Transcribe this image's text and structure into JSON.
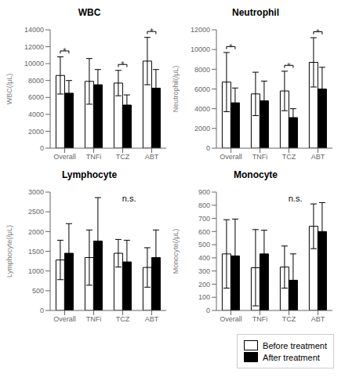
{
  "chart_data": [
    {
      "type": "bar",
      "title": "WBC",
      "y_label": "WBC(/μL)",
      "categories": [
        "Overall",
        "TNFi",
        "TCZ",
        "ABT"
      ],
      "series": [
        {
          "name": "Before treatment",
          "color": "#ffffff",
          "values": [
            8600,
            7900,
            7700,
            10300
          ],
          "errors": [
            2200,
            2700,
            1500,
            2800
          ]
        },
        {
          "name": "After treatment",
          "color": "#000000",
          "values": [
            6500,
            7500,
            5100,
            7100
          ],
          "errors": [
            1500,
            1800,
            1200,
            2200
          ]
        }
      ],
      "ylim": [
        0,
        14000
      ],
      "yticks": [
        0,
        2000,
        4000,
        6000,
        8000,
        10000,
        12000,
        14000
      ],
      "annotations": [
        {
          "category": "Overall",
          "text": "*"
        },
        {
          "category": "TCZ",
          "text": "*"
        },
        {
          "category": "ABT",
          "text": "*"
        }
      ]
    },
    {
      "type": "bar",
      "title": "Neutrophil",
      "y_label": "Neutrophil(/μL)",
      "categories": [
        "Overall",
        "TNFi",
        "TCZ",
        "ABT"
      ],
      "series": [
        {
          "name": "Before treatment",
          "color": "#ffffff",
          "values": [
            6700,
            5500,
            5800,
            8700
          ],
          "errors": [
            3000,
            2200,
            2000,
            2500
          ]
        },
        {
          "name": "After treatment",
          "color": "#000000",
          "values": [
            4600,
            4800,
            3100,
            6000
          ],
          "errors": [
            1500,
            2000,
            900,
            2200
          ]
        }
      ],
      "ylim": [
        0,
        12000
      ],
      "yticks": [
        0,
        2000,
        4000,
        6000,
        8000,
        10000,
        12000
      ],
      "annotations": [
        {
          "category": "Overall",
          "text": "*"
        },
        {
          "category": "TCZ",
          "text": "*"
        },
        {
          "category": "ABT",
          "text": "*"
        }
      ]
    },
    {
      "type": "bar",
      "title": "Lymphocyte",
      "y_label": "Lymphocyte(/μL)",
      "categories": [
        "Overall",
        "TNFi",
        "TCZ",
        "ABT"
      ],
      "series": [
        {
          "name": "Before treatment",
          "color": "#ffffff",
          "values": [
            1280,
            1340,
            1450,
            1090
          ],
          "errors": [
            500,
            700,
            350,
            500
          ]
        },
        {
          "name": "After treatment",
          "color": "#000000",
          "values": [
            1450,
            1760,
            1230,
            1340
          ],
          "errors": [
            750,
            1100,
            550,
            700
          ]
        }
      ],
      "ylim": [
        0,
        3000
      ],
      "yticks": [
        0,
        500,
        1000,
        1500,
        2000,
        2500,
        3000
      ],
      "annotations": [
        {
          "text": "n.s."
        }
      ]
    },
    {
      "type": "bar",
      "title": "Monocyte",
      "y_label": "Monocyte(/μL)",
      "categories": [
        "Overall",
        "TNFi",
        "TCZ",
        "ABT"
      ],
      "series": [
        {
          "name": "Before treatment",
          "color": "#ffffff",
          "values": [
            430,
            325,
            330,
            640
          ],
          "errors": [
            260,
            290,
            160,
            170
          ]
        },
        {
          "name": "After treatment",
          "color": "#000000",
          "values": [
            415,
            430,
            230,
            600
          ],
          "errors": [
            280,
            180,
            200,
            220
          ]
        }
      ],
      "ylim": [
        0,
        900
      ],
      "yticks": [
        0,
        100,
        200,
        300,
        400,
        500,
        600,
        700,
        800,
        900
      ],
      "annotations": [
        {
          "text": "n.s."
        }
      ],
      "legend": "lower right"
    }
  ]
}
